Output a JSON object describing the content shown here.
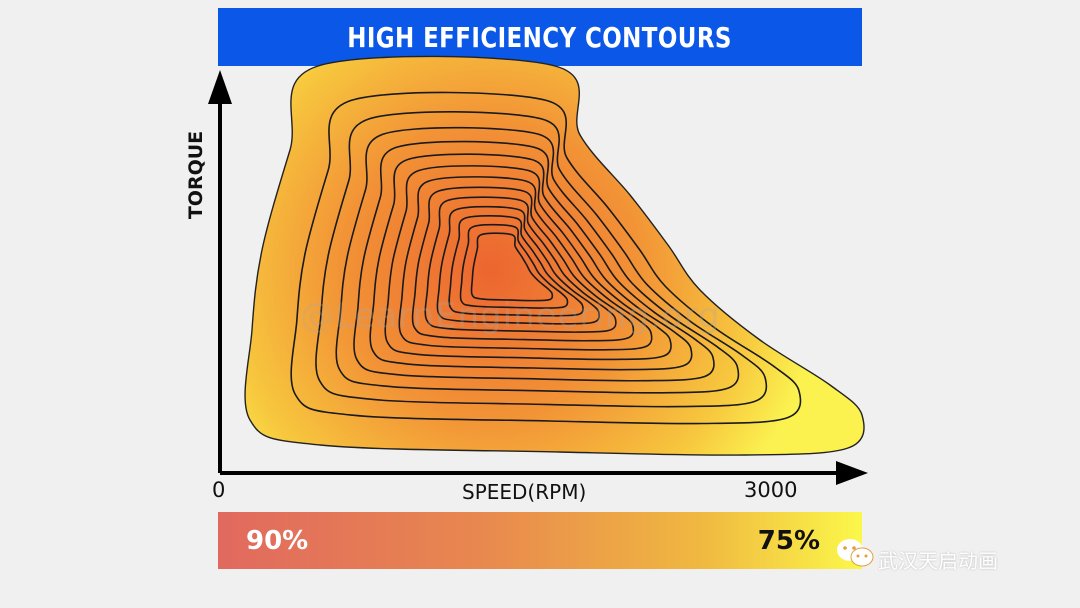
{
  "chart_data": {
    "type": "contour",
    "title": "HIGH EFFICIENCY CONTOURS",
    "xlabel": "SPEED(RPM)",
    "ylabel": "TORQUE",
    "x_ticks": [
      "0",
      "3000"
    ],
    "xlim": [
      0,
      3000
    ],
    "colorbar": {
      "max_label": "90%",
      "min_label": "75%",
      "max_color": "#e1695f",
      "min_color": "#fbf84a"
    },
    "contour_levels": 14,
    "peak_region": "center-left, mid torque"
  },
  "watermarks": {
    "overlay": "@LearnEngineering.org",
    "corner": "武汉天启动画"
  },
  "colors": {
    "banner": "#0a57e8",
    "background": "#f0f0f0",
    "axis": "#000000"
  }
}
